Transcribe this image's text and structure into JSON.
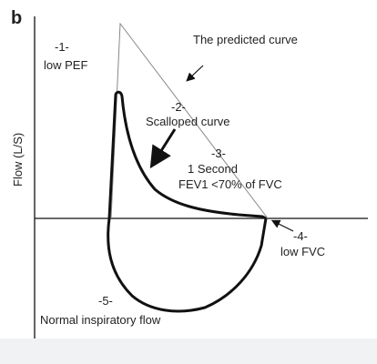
{
  "panel_label": "b",
  "y_axis_label": "Flow (L/S)",
  "annotations": {
    "low_pef_num": "-1-",
    "low_pef": "low PEF",
    "predicted_curve": "The predicted curve",
    "scalloped_num": "-2-",
    "scalloped": "Scalloped curve",
    "fev1_num": "-3-",
    "one_second": "1 Second",
    "fev1_ratio": "FEV1 <70% of FVC",
    "low_fvc_num": "-4-",
    "low_fvc": "low FVC",
    "inspiratory_num": "-5-",
    "inspiratory": "Normal inspiratory flow"
  },
  "colors": {
    "curve": "#111111",
    "predicted_line": "#888888",
    "axis": "#111111",
    "footer": "#f1f2f4"
  }
}
